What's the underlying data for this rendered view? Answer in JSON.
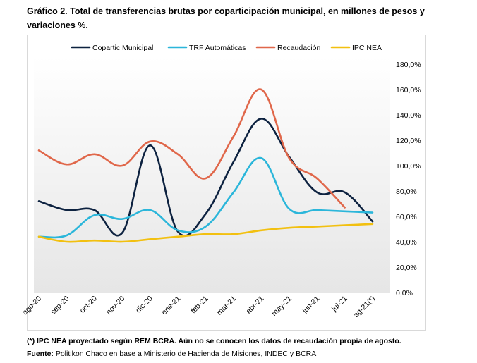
{
  "title": "Gráfico 2. Total de transferencias brutas por coparticipación municipal, en millones de pesos y variaciones %.",
  "footnote": "(*) IPC NEA proyectado según REM BCRA. Aún no se conocen los datos de recaudación propia de agosto.",
  "source_label": "Fuente:",
  "source_text": "Politikon Chaco en base a Ministerio de Hacienda de Misiones, INDEC y BCRA",
  "chart_data": {
    "type": "line",
    "title": "",
    "xlabel": "",
    "ylabel": "",
    "categories": [
      "ago-20",
      "sep-20",
      "oct-20",
      "nov-20",
      "dic-20",
      "ene-21",
      "feb-21",
      "mar-21",
      "abr-21",
      "may-21",
      "jun-21",
      "jul-21",
      "ag-21(*)"
    ],
    "ylim": [
      0,
      180
    ],
    "yticks": [
      0,
      20,
      40,
      60,
      80,
      100,
      120,
      140,
      160,
      180
    ],
    "ytick_labels": [
      "0,0%",
      "20,0%",
      "40,0%",
      "60,0%",
      "80,0%",
      "100,0%",
      "120,0%",
      "140,0%",
      "160,0%",
      "180,0%"
    ],
    "legend_position": "top",
    "grid": false,
    "series": [
      {
        "name": "Copartic Municipal",
        "color": "#0d2240",
        "values": [
          72,
          65,
          65,
          47,
          116,
          48,
          62,
          103,
          137,
          107,
          79,
          79,
          56
        ]
      },
      {
        "name": "TRF Automáticas",
        "color": "#2bb6da",
        "values": [
          44,
          45,
          61,
          58,
          65,
          49,
          52,
          79,
          106,
          66,
          65,
          64,
          63
        ]
      },
      {
        "name": "Recaudación",
        "color": "#e0674a",
        "values": [
          112,
          101,
          109,
          100,
          119,
          109,
          90,
          123,
          160,
          106,
          90,
          67,
          null
        ]
      },
      {
        "name": "IPC NEA",
        "color": "#f2c010",
        "values": [
          44,
          40,
          41,
          40,
          42,
          44,
          46,
          46,
          49,
          51,
          52,
          53,
          54
        ]
      }
    ]
  }
}
